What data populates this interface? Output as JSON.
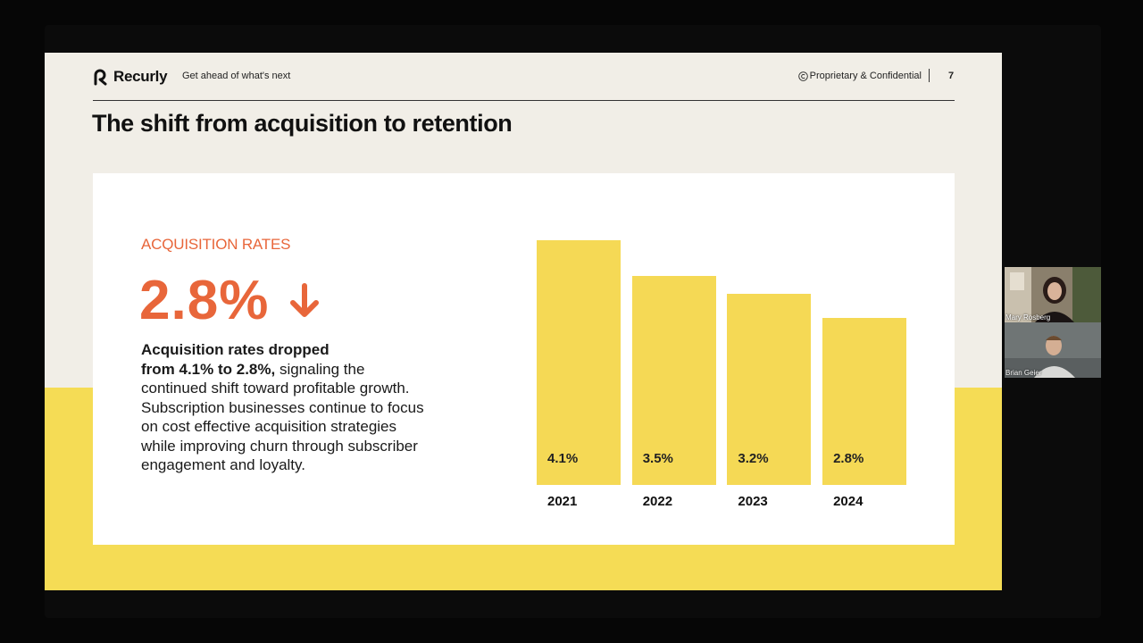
{
  "brand": {
    "name": "Recurly",
    "tagline": "Get ahead of what's next"
  },
  "header": {
    "confidential": "Proprietary & Confidential",
    "page": "7"
  },
  "slide": {
    "title": "The shift from acquisition to retention",
    "section_label": "ACQUISITION RATES",
    "big_stat": "2.8%",
    "desc_bold_1": "Acquisition rates dropped",
    "desc_bold_2": "from 4.1% to 2.8%,",
    "desc_rest": " signaling the continued shift toward profitable growth. Subscription businesses continue to focus on cost effective acquisition strategies while improving churn through subscriber engagement and loyalty."
  },
  "chart_data": {
    "type": "bar",
    "categories": [
      "2021",
      "2022",
      "2023",
      "2024"
    ],
    "values": [
      4.1,
      3.5,
      3.2,
      2.8
    ],
    "value_labels": [
      "4.1%",
      "3.5%",
      "3.2%",
      "2.8%"
    ],
    "ylim": [
      0,
      4.1
    ],
    "color": "#f5d955"
  },
  "participants": [
    {
      "name": "Mary Rosberg"
    },
    {
      "name": "Brian Geier"
    }
  ],
  "colors": {
    "accent": "#e8663a",
    "yellow": "#f5dc55",
    "slide_bg": "#f1eee7"
  }
}
